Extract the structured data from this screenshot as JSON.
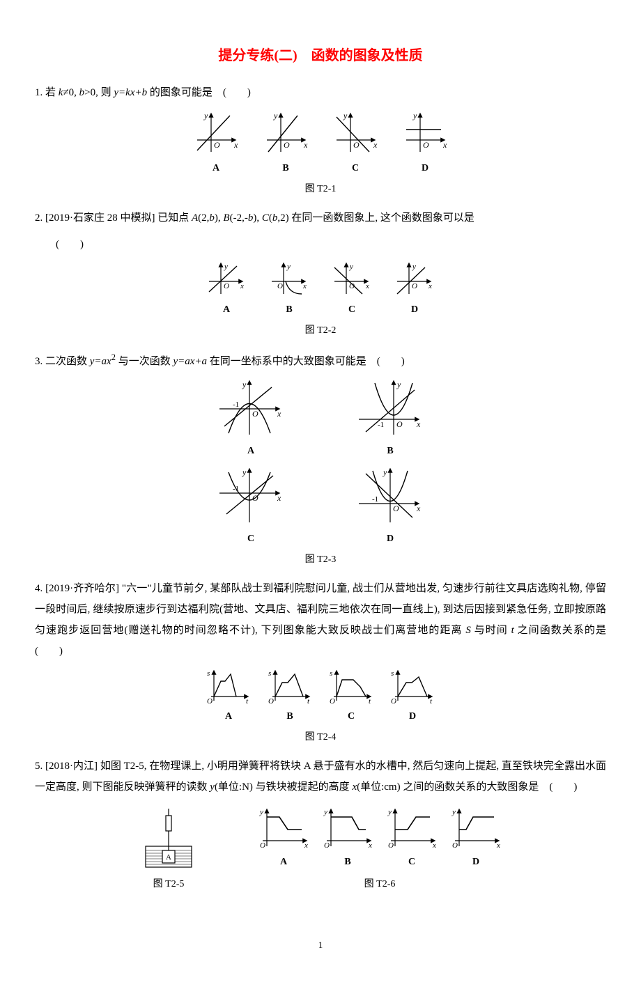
{
  "title_color": "#ff0000",
  "title": "提分专练(二)　函数的图象及性质",
  "q1": {
    "text": "1. 若 <span class=\"italic\">k</span>≠0, <span class=\"italic\">b</span>&gt;0, 则 <span class=\"italic\">y=kx+b</span> 的图象可能是　(　　)",
    "figlabel": "图 T2-1",
    "options": [
      "A",
      "B",
      "C",
      "D"
    ]
  },
  "q2": {
    "text": "2. [2019·石家庄 28 中模拟] 已知点 <span class=\"italic\">A</span>(2,<span class=\"italic\">b</span>), <span class=\"italic\">B</span>(-2,-<span class=\"italic\">b</span>), <span class=\"italic\">C</span>(<span class=\"italic\">b</span>,2) 在同一函数图象上, 这个函数图象可以是",
    "paren": "(　　)",
    "figlabel": "图 T2-2",
    "options": [
      "A",
      "B",
      "C",
      "D"
    ]
  },
  "q3": {
    "text": "3. 二次函数 <span class=\"italic\">y=ax</span><sup>2</sup> 与一次函数 <span class=\"italic\">y=ax+a</span> 在同一坐标系中的大致图象可能是　(　　)",
    "figlabel": "图 T2-3",
    "options": [
      "A",
      "B",
      "C",
      "D"
    ]
  },
  "q4": {
    "text": "4. [2019·齐齐哈尔] \"六一\"儿童节前夕, 某部队战士到福利院慰问儿童, 战士们从营地出发, 匀速步行前往文具店选购礼物, 停留一段时间后, 继续按原速步行到达福利院(营地、文具店、福利院三地依次在同一直线上), 到达后因接到紧急任务, 立即按原路匀速跑步返回营地(赠送礼物的时间忽略不计), 下列图象能大致反映战士们离营地的距离 <span class=\"italic\">S</span> 与时间 <span class=\"italic\">t</span> 之间函数关系的是　　(　　)",
    "figlabel": "图 T2-4",
    "options": [
      "A",
      "B",
      "C",
      "D"
    ]
  },
  "q5": {
    "text": "5. [2018·内江] 如图 T2-5, 在物理课上, 小明用弹簧秤将铁块 A 悬于盛有水的水槽中, 然后匀速向上提起, 直至铁块完全露出水面一定高度, 则下图能反映弹簧秤的读数 <span class=\"italic\">y</span>(单位:N) 与铁块被提起的高度 <span class=\"italic\">x</span>(单位:cm) 之间的函数关系的大致图象是　(　　)",
    "figlabel_left": "图 T2-5",
    "figlabel_right": "图 T2-6",
    "options": [
      "A",
      "B",
      "C",
      "D"
    ]
  },
  "page_number": "1",
  "style": {
    "axis_stroke": "#000000",
    "axis_width": 1.2,
    "curve_width": 1.4,
    "font_axis": "italic 12px Times New Roman",
    "font_label": "12px Times New Roman"
  }
}
